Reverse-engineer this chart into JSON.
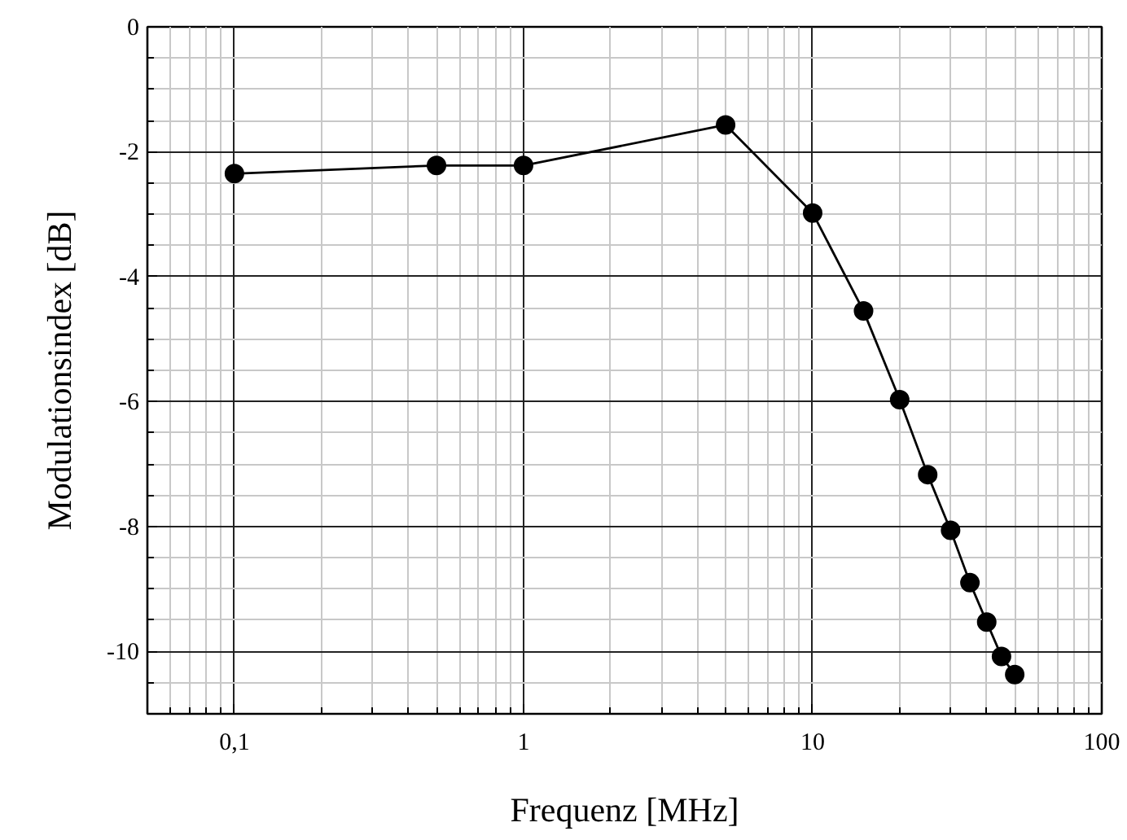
{
  "chart_data": {
    "type": "line",
    "xlabel": "Frequenz [MHz]",
    "ylabel": "Modulationsindex [dB]",
    "x": [
      0.1,
      0.5,
      1,
      5,
      10,
      15,
      20,
      25,
      30,
      35,
      40,
      45,
      50
    ],
    "series": [
      {
        "color": "#000000",
        "values": [
          -2.35,
          -2.22,
          -2.22,
          -1.57,
          -2.98,
          -4.55,
          -5.97,
          -7.17,
          -8.06,
          -8.9,
          -9.53,
          -10.08,
          -10.37
        ]
      }
    ],
    "log": "x",
    "marker": "circle",
    "line_style": "solid",
    "grid": true,
    "xlim": [
      0.05,
      100
    ],
    "ylim": [
      -11,
      0
    ],
    "xticks": [
      {
        "value": 0.1,
        "label": "0,1"
      },
      1,
      10,
      100
    ],
    "yticks": [
      -10,
      -8,
      -6,
      -4,
      -2,
      0
    ]
  }
}
